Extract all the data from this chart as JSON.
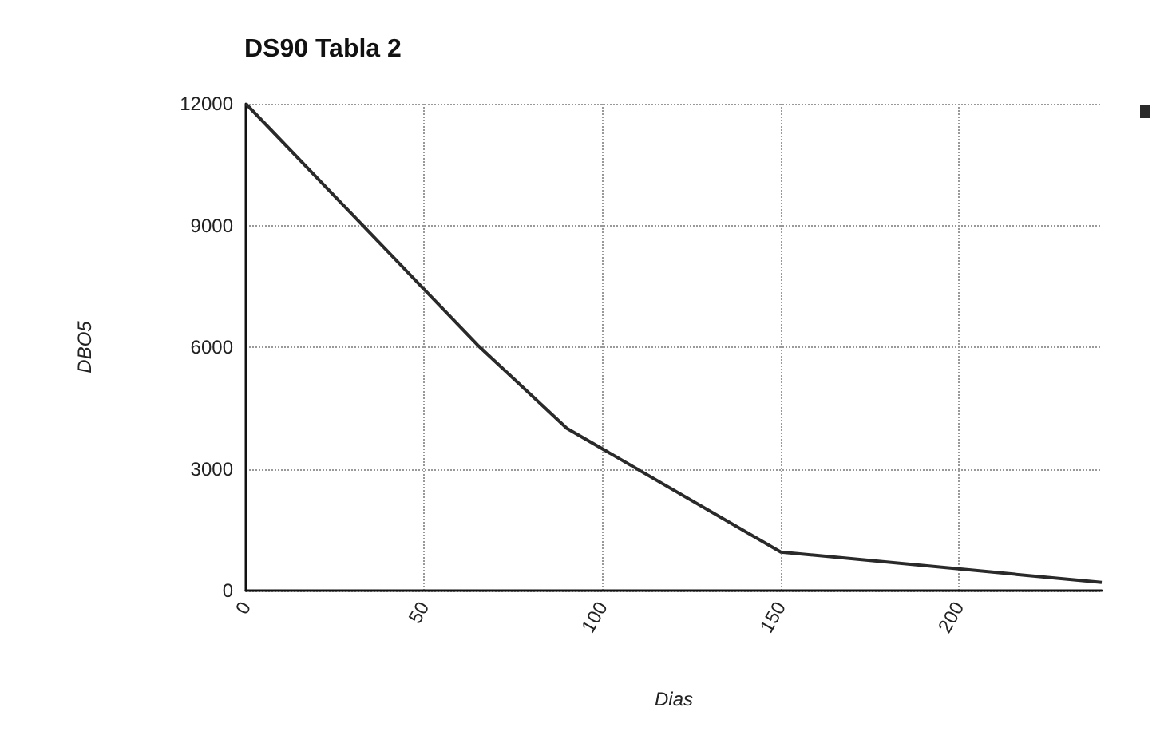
{
  "chart_data": {
    "type": "line",
    "title": "DS90 Tabla 2",
    "xlabel": "Dias",
    "ylabel": "DBO5",
    "x": [
      0,
      65,
      90,
      150,
      240
    ],
    "series": [
      {
        "color": "#2a2a2a",
        "values": [
          12000,
          6050,
          4000,
          950,
          200
        ]
      }
    ],
    "xlim": [
      0,
      240
    ],
    "xticks": [
      0,
      50,
      100,
      150,
      200
    ],
    "ylim": [
      0,
      12000
    ],
    "yticks": [
      0,
      3000,
      6000,
      9000,
      12000
    ],
    "grid": true,
    "marker": "none",
    "line_style": "solid"
  }
}
